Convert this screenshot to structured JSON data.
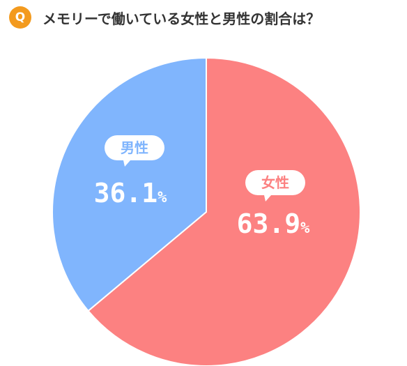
{
  "header": {
    "badge": "Q",
    "question": "メモリーで働いている女性と男性の割合は？"
  },
  "colors": {
    "badge": "#f39a1e",
    "female": "#fc8181",
    "male": "#80b5fd",
    "bubble_bg": "#ffffff"
  },
  "chart_data": {
    "type": "pie",
    "categories": [
      "女性",
      "男性"
    ],
    "values": [
      63.9,
      36.1
    ],
    "value_labels": [
      "63.9",
      "36.1"
    ],
    "unit": "%",
    "start": "12 o'clock",
    "direction": "clockwise"
  }
}
